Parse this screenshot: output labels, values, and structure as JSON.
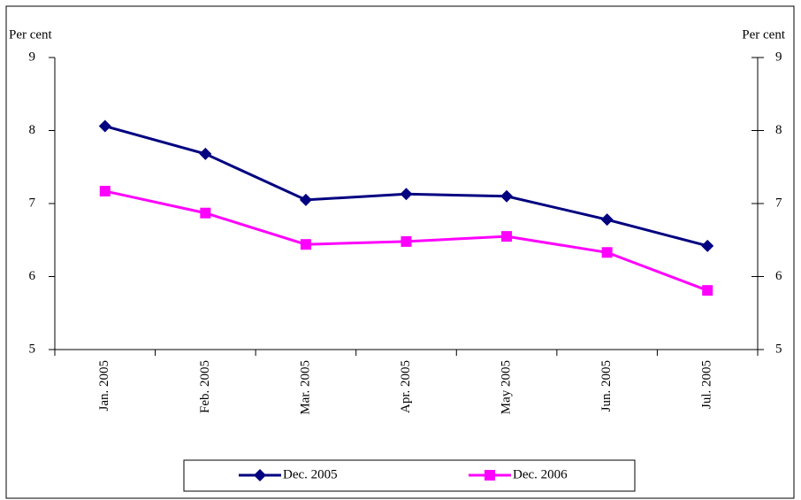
{
  "chart_data": {
    "type": "line",
    "y_label": "Per cent",
    "y2_label": "Per cent",
    "categories": [
      "Jan. 2005",
      "Feb. 2005",
      "Mar. 2005",
      "Apr. 2005",
      "May 2005",
      "Jun. 2005",
      "Jul. 2005"
    ],
    "series": [
      {
        "name": "Dec. 2005",
        "color": "#000080",
        "marker": "diamond",
        "values": [
          8.06,
          7.68,
          7.05,
          7.13,
          7.1,
          6.78,
          6.42
        ]
      },
      {
        "name": "Dec. 2006",
        "color": "#ff00ff",
        "marker": "square",
        "values": [
          7.17,
          6.87,
          6.44,
          6.48,
          6.55,
          6.33,
          5.81
        ]
      }
    ],
    "ylim": [
      5,
      9
    ],
    "yticks": [
      5,
      6,
      7,
      8,
      9
    ],
    "y2lim": [
      5,
      9
    ],
    "y2ticks": [
      5,
      6,
      7,
      8,
      9
    ],
    "grid": false,
    "legend": "bottom"
  }
}
